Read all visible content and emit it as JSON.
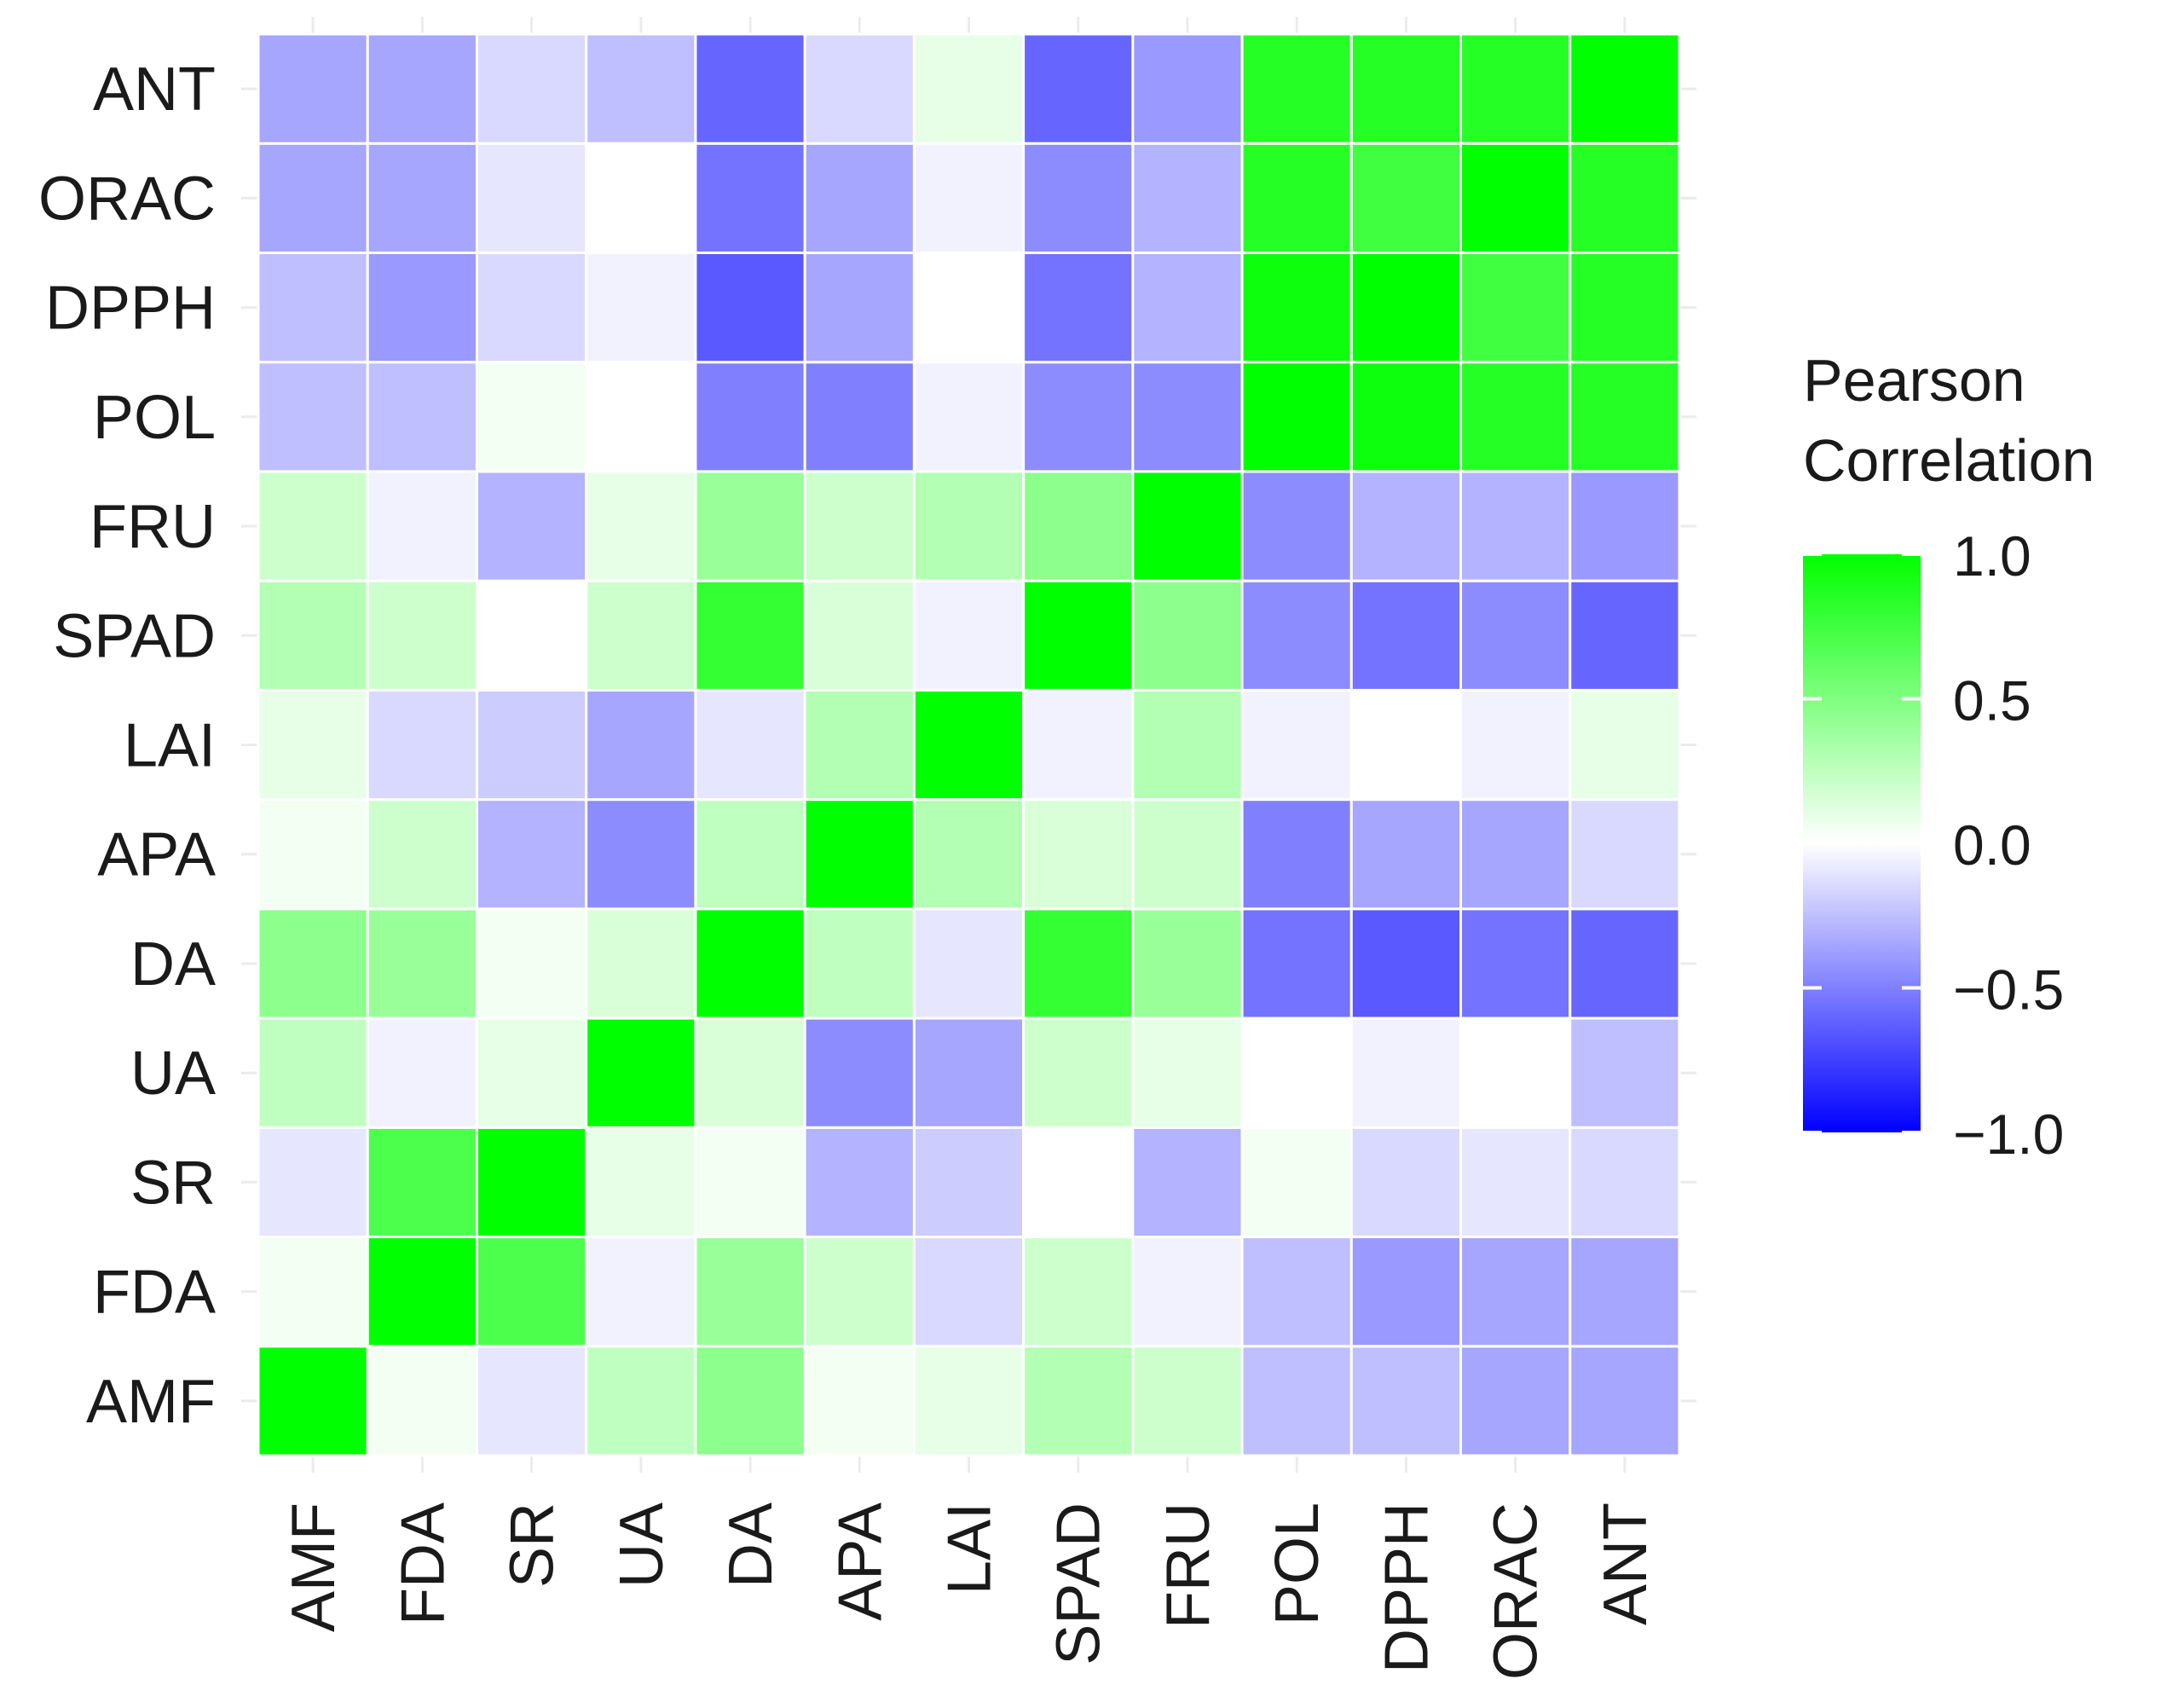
{
  "chart_data": {
    "type": "heatmap",
    "title": "",
    "xlabel": "",
    "ylabel": "",
    "x_labels": [
      "AMF",
      "FDA",
      "SR",
      "UA",
      "DA",
      "APA",
      "LAI",
      "SPAD",
      "FRU",
      "POL",
      "DPPH",
      "ORAC",
      "ANT"
    ],
    "y_labels": [
      "AMF",
      "FDA",
      "SR",
      "UA",
      "DA",
      "APA",
      "LAI",
      "SPAD",
      "FRU",
      "POL",
      "DPPH",
      "ORAC",
      "ANT"
    ],
    "values": [
      [
        1.0,
        0.05,
        -0.1,
        0.25,
        0.45,
        0.05,
        0.1,
        0.3,
        0.2,
        -0.25,
        -0.25,
        -0.35,
        -0.35
      ],
      [
        0.05,
        1.0,
        0.7,
        -0.05,
        0.4,
        0.2,
        -0.15,
        0.2,
        -0.05,
        -0.25,
        -0.4,
        -0.35,
        -0.35
      ],
      [
        -0.1,
        0.7,
        1.0,
        0.1,
        0.05,
        -0.3,
        -0.2,
        0.0,
        -0.3,
        0.05,
        -0.15,
        -0.1,
        -0.15
      ],
      [
        0.25,
        -0.05,
        0.1,
        1.0,
        0.15,
        -0.45,
        -0.35,
        0.2,
        0.1,
        0.0,
        -0.05,
        0.0,
        -0.25
      ],
      [
        0.45,
        0.4,
        0.05,
        0.15,
        1.0,
        0.25,
        -0.1,
        0.8,
        0.4,
        -0.55,
        -0.65,
        -0.55,
        -0.6
      ],
      [
        0.05,
        0.2,
        -0.3,
        -0.45,
        0.25,
        1.0,
        0.3,
        0.15,
        0.2,
        -0.5,
        -0.35,
        -0.35,
        -0.15
      ],
      [
        0.1,
        -0.15,
        -0.2,
        -0.35,
        -0.1,
        0.3,
        1.0,
        -0.05,
        0.3,
        -0.05,
        0.0,
        -0.05,
        0.1
      ],
      [
        0.3,
        0.2,
        0.0,
        0.2,
        0.8,
        0.15,
        -0.05,
        1.0,
        0.45,
        -0.45,
        -0.55,
        -0.45,
        -0.6
      ],
      [
        0.2,
        -0.05,
        -0.3,
        0.1,
        0.4,
        0.2,
        0.3,
        0.45,
        1.0,
        -0.45,
        -0.3,
        -0.3,
        -0.4
      ],
      [
        -0.25,
        -0.25,
        0.05,
        0.0,
        -0.5,
        -0.5,
        -0.05,
        -0.45,
        -0.45,
        1.0,
        0.95,
        0.85,
        0.85
      ],
      [
        -0.25,
        -0.4,
        -0.15,
        -0.05,
        -0.65,
        -0.35,
        0.0,
        -0.55,
        -0.3,
        0.95,
        1.0,
        0.75,
        0.85
      ],
      [
        -0.35,
        -0.35,
        -0.1,
        0.0,
        -0.55,
        -0.35,
        -0.05,
        -0.45,
        -0.3,
        0.85,
        0.75,
        1.0,
        0.85
      ],
      [
        -0.35,
        -0.35,
        -0.15,
        -0.25,
        -0.6,
        -0.15,
        0.1,
        -0.6,
        -0.4,
        0.85,
        0.85,
        0.85,
        1.0
      ]
    ],
    "legend": {
      "title_lines": [
        "Pearson",
        "Correlation"
      ],
      "ticks": [
        1.0,
        0.5,
        0.0,
        -0.5,
        -1.0
      ],
      "tick_labels": [
        "1.0",
        "0.5",
        "0.0",
        "−0.5",
        "−1.0"
      ],
      "placement": "right"
    },
    "color_scale": {
      "low": "#0000ff",
      "mid": "#ffffff",
      "high": "#00ff00",
      "limits": [
        -1,
        1
      ]
    }
  }
}
